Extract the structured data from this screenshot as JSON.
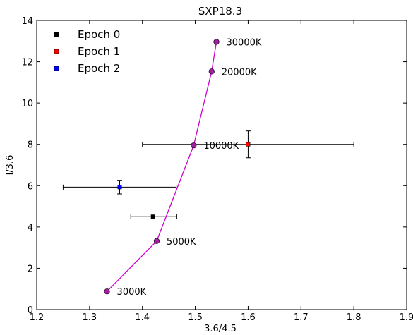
{
  "chart_data": {
    "type": "scatter",
    "title": "SXP18.3",
    "xlabel": "3.6/4.5",
    "ylabel": "l/3.6",
    "xlim": [
      1.2,
      1.9
    ],
    "ylim": [
      0,
      14
    ],
    "x_ticks": [
      "1.2",
      "1.3",
      "1.4",
      "1.5",
      "1.6",
      "1.7",
      "1.8",
      "1.9"
    ],
    "y_ticks": [
      "0",
      "2",
      "4",
      "6",
      "8",
      "10",
      "12",
      "14"
    ],
    "legend_position": "top-left",
    "grid": false,
    "series": [
      {
        "name": "Epoch 0",
        "color": "#000000",
        "marker": "square",
        "x": 1.42,
        "y": 4.5,
        "xerr": [
          0.042,
          0.045
        ],
        "yerr": [
          0.0,
          0.0
        ]
      },
      {
        "name": "Epoch 1",
        "color": "#ff0000",
        "marker": "square",
        "x": 1.6,
        "y": 8.0,
        "xerr": [
          0.2,
          0.2
        ],
        "yerr": [
          0.65,
          0.65
        ]
      },
      {
        "name": "Epoch 2",
        "color": "#0000ff",
        "marker": "square",
        "x": 1.357,
        "y": 5.93,
        "xerr": [
          0.107,
          0.107
        ],
        "yerr": [
          0.33,
          0.33
        ]
      }
    ],
    "model_track": {
      "color": "#cc00cc",
      "marker_fill": "#a020a0",
      "points": [
        {
          "x": 1.333,
          "y": 0.88,
          "label": "3000K"
        },
        {
          "x": 1.427,
          "y": 3.32,
          "label": "5000K"
        },
        {
          "x": 1.497,
          "y": 7.95,
          "label": "10000K"
        },
        {
          "x": 1.531,
          "y": 11.53,
          "label": "20000K"
        },
        {
          "x": 1.54,
          "y": 12.96,
          "label": "30000K"
        }
      ]
    }
  }
}
